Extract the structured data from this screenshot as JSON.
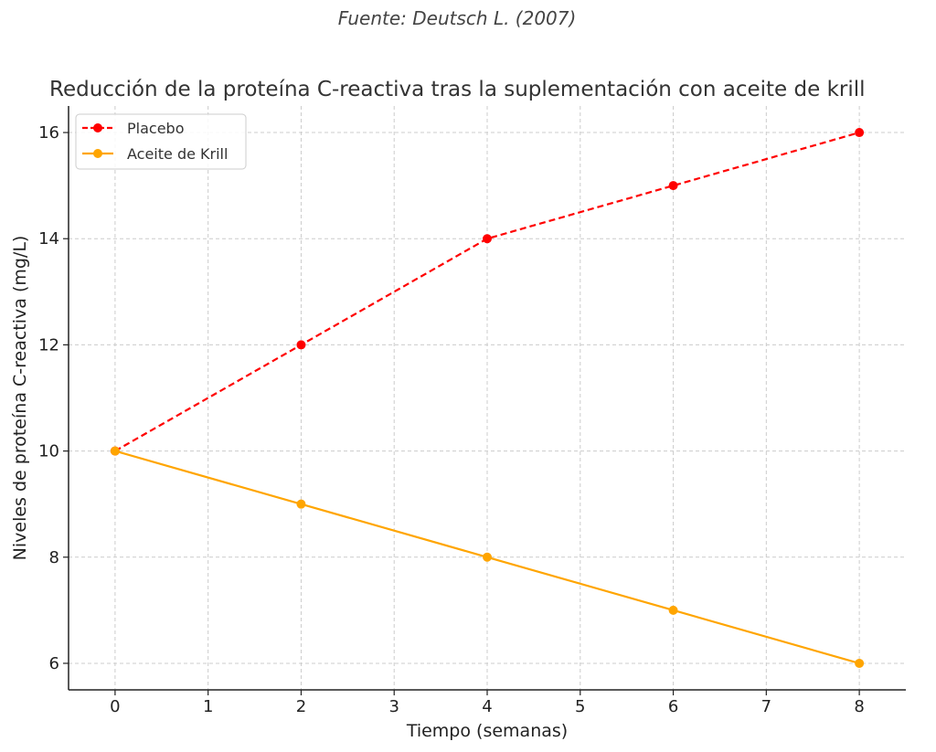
{
  "source": "Fuente: Deutsch L. (2007)",
  "colors": {
    "placebo": "#ff0000",
    "krill": "#ffa500",
    "grid": "#cccccc",
    "axis": "#222222"
  },
  "chart_data": {
    "type": "line",
    "title": "Reducción de la proteína C-reactiva tras la suplementación con aceite de krill",
    "xlabel": "Tiempo (semanas)",
    "ylabel": "Niveles de proteína C-reactiva (mg/L)",
    "xlim": [
      -0.5,
      8.5
    ],
    "ylim": [
      5.5,
      16.5
    ],
    "xticks": [
      0,
      1,
      2,
      3,
      4,
      5,
      6,
      7,
      8
    ],
    "yticks": [
      6,
      8,
      10,
      12,
      14,
      16
    ],
    "grid": true,
    "legend_position": "top-left",
    "series": [
      {
        "name": "Placebo",
        "x": [
          0,
          2,
          4,
          6,
          8
        ],
        "y": [
          10,
          12,
          14,
          15,
          16
        ],
        "color": "#ff0000",
        "line_style": "dashed",
        "marker": "circle"
      },
      {
        "name": "Aceite de Krill",
        "x": [
          0,
          2,
          4,
          6,
          8
        ],
        "y": [
          10,
          9,
          8,
          7,
          6
        ],
        "color": "#ffa500",
        "line_style": "solid",
        "marker": "circle"
      }
    ]
  }
}
